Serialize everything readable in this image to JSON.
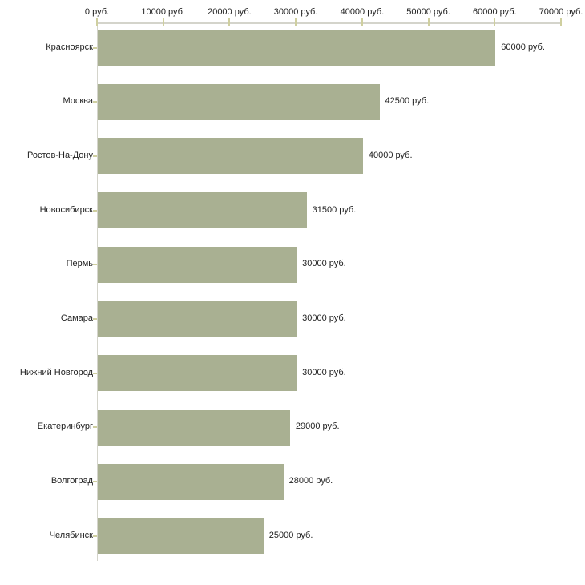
{
  "chart_data": {
    "type": "bar",
    "orientation": "horizontal",
    "title": "",
    "xlabel": "",
    "ylabel": "",
    "unit": "руб.",
    "categories": [
      "Красноярск",
      "Москва",
      "Ростов-На-Дону",
      "Новосибирск",
      "Пермь",
      "Самара",
      "Нижний Новгород",
      "Екатеринбург",
      "Волгоград",
      "Челябинск"
    ],
    "values": [
      60000,
      42500,
      40000,
      31500,
      30000,
      30000,
      30000,
      29000,
      28000,
      25000
    ],
    "value_labels": [
      "60000 руб.",
      "42500 руб.",
      "40000 руб.",
      "31500 руб.",
      "30000 руб.",
      "30000 руб.",
      "30000 руб.",
      "29000 руб.",
      "28000 руб.",
      "25000 руб."
    ],
    "x_axis": {
      "position": "top",
      "xlim": [
        0,
        70000
      ],
      "ticks": [
        0,
        10000,
        20000,
        30000,
        40000,
        50000,
        60000,
        70000
      ],
      "tick_labels": [
        "0 руб.",
        "10000 руб.",
        "20000 руб.",
        "30000 руб.",
        "40000 руб.",
        "50000 руб.",
        "60000 руб.",
        "70000 руб."
      ]
    },
    "grid": false,
    "legend": false,
    "colors": {
      "bar": "#a9b092",
      "axis_line": "#d4d4cb",
      "tick": "#cfcf9f",
      "text": "#222222",
      "background": "#ffffff"
    }
  }
}
